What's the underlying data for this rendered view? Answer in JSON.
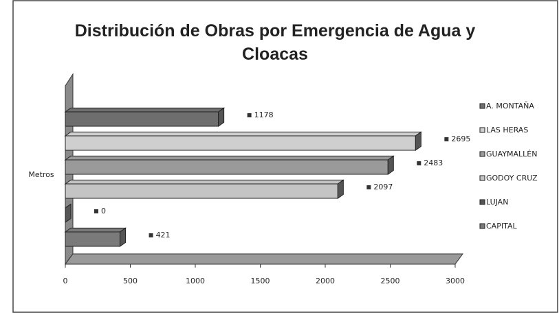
{
  "chart_data": {
    "type": "bar",
    "orientation": "horizontal",
    "title": "Distribución de Obras por Emergencia de Agua y Cloacas",
    "categories": [
      "Metros"
    ],
    "series": [
      {
        "name": "A. MONTAÑA",
        "color": "#6e6e6e",
        "values": [
          1178
        ]
      },
      {
        "name": "LAS HERAS",
        "color": "#cfcfcf",
        "values": [
          2695
        ]
      },
      {
        "name": "GUAYMALLÉN",
        "color": "#9a9a9a",
        "values": [
          2483
        ]
      },
      {
        "name": "GODOY CRUZ",
        "color": "#c4c4c4",
        "values": [
          2097
        ]
      },
      {
        "name": "LUJAN",
        "color": "#555555",
        "values": [
          0
        ]
      },
      {
        "name": "CAPITAL",
        "color": "#7a7a7a",
        "values": [
          421
        ]
      }
    ],
    "xlim": [
      0,
      3000
    ],
    "xticks": [
      0,
      500,
      1000,
      1500,
      2000,
      2500,
      3000
    ],
    "legend": "right"
  }
}
